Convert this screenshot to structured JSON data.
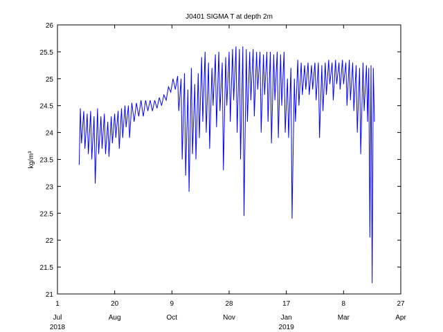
{
  "chart_data": {
    "type": "line",
    "title": "J0401 SIGMA T at depth 2m",
    "ylabel": "kg/m³",
    "color": "#0000ff",
    "xlim": [
      "2018-07-01",
      "2019-04-27"
    ],
    "xticks": [
      {
        "value": "2018-07-01",
        "label": "1",
        "month": "Jul",
        "year": "2018"
      },
      {
        "value": "2018-08-20",
        "label": "20",
        "month": "Aug"
      },
      {
        "value": "2018-10-09",
        "label": "9",
        "month": "Oct"
      },
      {
        "value": "2018-11-28",
        "label": "28",
        "month": "Nov"
      },
      {
        "value": "2019-01-17",
        "label": "17",
        "month": "Jan",
        "year": "2019"
      },
      {
        "value": "2019-03-08",
        "label": "8",
        "month": "Mar"
      },
      {
        "value": "2019-04-27",
        "label": "27",
        "month": "Apr"
      }
    ],
    "ylim": [
      21,
      26
    ],
    "yticks": [
      21,
      21.5,
      22,
      22.5,
      23,
      23.5,
      24,
      24.5,
      25,
      25.5,
      26
    ],
    "x": [
      "2018-07-20",
      "2018-07-21",
      "2018-07-22",
      "2018-07-24",
      "2018-07-25",
      "2018-07-27",
      "2018-07-28",
      "2018-07-30",
      "2018-07-31",
      "2018-08-02",
      "2018-08-03",
      "2018-08-05",
      "2018-08-06",
      "2018-08-08",
      "2018-08-09",
      "2018-08-11",
      "2018-08-12",
      "2018-08-14",
      "2018-08-15",
      "2018-08-17",
      "2018-08-18",
      "2018-08-20",
      "2018-08-21",
      "2018-08-23",
      "2018-08-24",
      "2018-08-26",
      "2018-08-27",
      "2018-08-29",
      "2018-08-30",
      "2018-09-01",
      "2018-09-02",
      "2018-09-04",
      "2018-09-06",
      "2018-09-08",
      "2018-09-10",
      "2018-09-12",
      "2018-09-14",
      "2018-09-16",
      "2018-09-18",
      "2018-09-20",
      "2018-09-22",
      "2018-09-24",
      "2018-09-26",
      "2018-09-28",
      "2018-09-30",
      "2018-10-02",
      "2018-10-04",
      "2018-10-06",
      "2018-10-08",
      "2018-10-10",
      "2018-10-12",
      "2018-10-14",
      "2018-10-15",
      "2018-10-17",
      "2018-10-18",
      "2018-10-20",
      "2018-10-21",
      "2018-10-23",
      "2018-10-24",
      "2018-10-26",
      "2018-10-27",
      "2018-10-29",
      "2018-10-30",
      "2018-11-01",
      "2018-11-02",
      "2018-11-04",
      "2018-11-05",
      "2018-11-07",
      "2018-11-08",
      "2018-11-10",
      "2018-11-11",
      "2018-11-13",
      "2018-11-14",
      "2018-11-16",
      "2018-11-17",
      "2018-11-19",
      "2018-11-20",
      "2018-11-22",
      "2018-11-23",
      "2018-11-25",
      "2018-11-26",
      "2018-11-28",
      "2018-11-29",
      "2018-12-01",
      "2018-12-02",
      "2018-12-04",
      "2018-12-05",
      "2018-12-07",
      "2018-12-08",
      "2018-12-10",
      "2018-12-11",
      "2018-12-13",
      "2018-12-14",
      "2018-12-16",
      "2018-12-17",
      "2018-12-19",
      "2018-12-20",
      "2018-12-22",
      "2018-12-23",
      "2018-12-25",
      "2018-12-26",
      "2018-12-28",
      "2018-12-29",
      "2018-12-31",
      "2019-01-01",
      "2019-01-03",
      "2019-01-04",
      "2019-01-06",
      "2019-01-07",
      "2019-01-09",
      "2019-01-10",
      "2019-01-12",
      "2019-01-13",
      "2019-01-15",
      "2019-01-16",
      "2019-01-18",
      "2019-01-19",
      "2019-01-21",
      "2019-01-22",
      "2019-01-24",
      "2019-01-25",
      "2019-01-27",
      "2019-01-28",
      "2019-01-30",
      "2019-01-31",
      "2019-02-02",
      "2019-02-03",
      "2019-02-05",
      "2019-02-06",
      "2019-02-08",
      "2019-02-09",
      "2019-02-11",
      "2019-02-12",
      "2019-02-14",
      "2019-02-15",
      "2019-02-17",
      "2019-02-18",
      "2019-02-20",
      "2019-02-21",
      "2019-02-23",
      "2019-02-24",
      "2019-02-26",
      "2019-02-27",
      "2019-03-01",
      "2019-03-02",
      "2019-03-04",
      "2019-03-05",
      "2019-03-07",
      "2019-03-08",
      "2019-03-10",
      "2019-03-11",
      "2019-03-13",
      "2019-03-14",
      "2019-03-16",
      "2019-03-17",
      "2019-03-19",
      "2019-03-20",
      "2019-03-22",
      "2019-03-23",
      "2019-03-25",
      "2019-03-26",
      "2019-03-28",
      "2019-03-29",
      "2019-03-30",
      "2019-03-31",
      "2019-04-01",
      "2019-04-02",
      "2019-04-03",
      "2019-04-04"
    ],
    "values": [
      23.4,
      24.45,
      23.8,
      24.4,
      23.7,
      24.35,
      23.6,
      24.4,
      23.5,
      24.3,
      23.05,
      24.45,
      23.6,
      24.3,
      23.7,
      24.35,
      23.6,
      24.2,
      23.55,
      24.3,
      23.8,
      24.35,
      23.9,
      24.4,
      23.7,
      24.45,
      23.9,
      24.5,
      24.1,
      24.5,
      23.9,
      24.55,
      24.2,
      24.55,
      24.3,
      24.6,
      24.3,
      24.6,
      24.4,
      24.6,
      24.4,
      24.6,
      24.45,
      24.65,
      24.5,
      24.7,
      24.6,
      24.85,
      24.75,
      25.0,
      24.8,
      25.05,
      24.4,
      25.0,
      23.5,
      25.1,
      23.2,
      24.8,
      22.9,
      25.2,
      23.6,
      24.9,
      23.5,
      25.1,
      23.9,
      25.4,
      24.2,
      25.5,
      24.0,
      25.3,
      23.7,
      25.2,
      24.5,
      25.45,
      24.1,
      25.5,
      24.4,
      25.3,
      23.3,
      25.4,
      24.5,
      25.5,
      24.2,
      25.55,
      24.6,
      25.6,
      24.0,
      25.55,
      23.5,
      25.6,
      22.45,
      25.55,
      24.2,
      25.5,
      24.6,
      25.55,
      24.3,
      25.5,
      24.8,
      25.5,
      24.0,
      25.45,
      24.7,
      25.5,
      24.2,
      25.5,
      23.8,
      25.45,
      24.6,
      25.5,
      23.9,
      25.45,
      24.5,
      25.5,
      24.0,
      25.0,
      23.9,
      25.2,
      22.4,
      25.0,
      24.2,
      25.35,
      24.5,
      25.3,
      24.7,
      25.25,
      24.8,
      25.3,
      24.7,
      25.25,
      24.8,
      25.3,
      24.6,
      25.3,
      23.9,
      25.25,
      24.4,
      25.3,
      24.7,
      25.35,
      24.9,
      25.3,
      24.6,
      25.35,
      24.9,
      25.3,
      24.8,
      25.35,
      24.9,
      25.3,
      24.5,
      25.35,
      24.6,
      25.3,
      24.4,
      25.25,
      24.0,
      25.2,
      23.6,
      25.3,
      24.4,
      25.25,
      24.2,
      25.2,
      22.05,
      25.25,
      21.2,
      25.2,
      24.2
    ]
  }
}
